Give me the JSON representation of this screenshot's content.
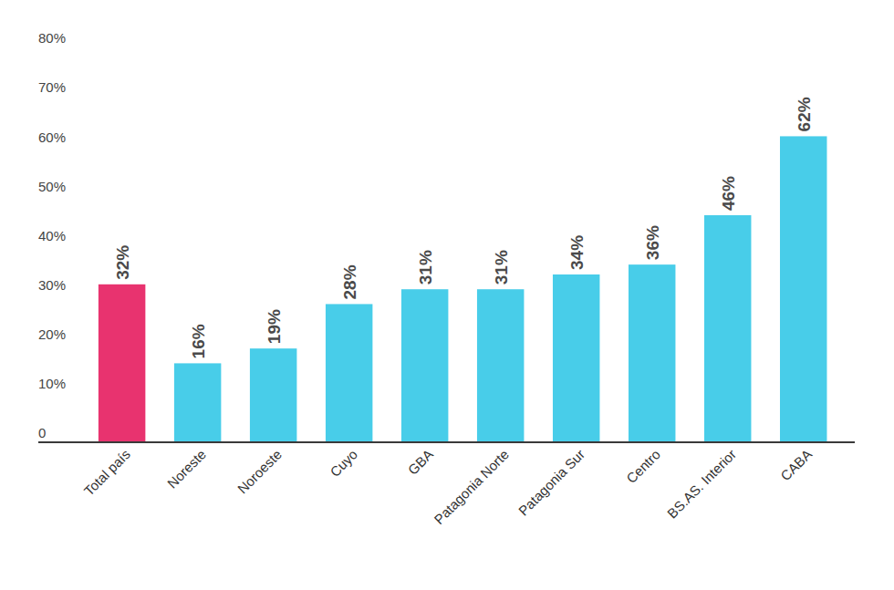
{
  "chart_data": {
    "type": "bar",
    "categories": [
      "Total país",
      "Noreste",
      "Noroeste",
      "Cuyo",
      "GBA",
      "Patagonia Norte",
      "Patagonia Sur",
      "Centro",
      "BS.AS. Interior",
      "CABA"
    ],
    "values": [
      32,
      16,
      19,
      28,
      31,
      31,
      34,
      36,
      46,
      62
    ],
    "value_labels": [
      "32%",
      "16%",
      "19%",
      "28%",
      "31%",
      "31%",
      "34%",
      "36%",
      "46%",
      "62%"
    ],
    "colors": [
      "#e8336f",
      "#48cde9",
      "#48cde9",
      "#48cde9",
      "#48cde9",
      "#48cde9",
      "#48cde9",
      "#48cde9",
      "#48cde9",
      "#48cde9"
    ],
    "ylim": [
      0,
      80
    ],
    "yticks": [
      0,
      {
        "value": 10,
        "label": "10%"
      },
      {
        "value": 20,
        "label": "20%"
      },
      {
        "value": 30,
        "label": "30%"
      },
      {
        "value": 40,
        "label": "40%"
      },
      {
        "value": 50,
        "label": "50%"
      },
      {
        "value": 60,
        "label": "60%"
      },
      {
        "value": 70,
        "label": "70%"
      },
      {
        "value": 80,
        "label": "80%"
      }
    ],
    "grid": false,
    "data_labels": true
  }
}
